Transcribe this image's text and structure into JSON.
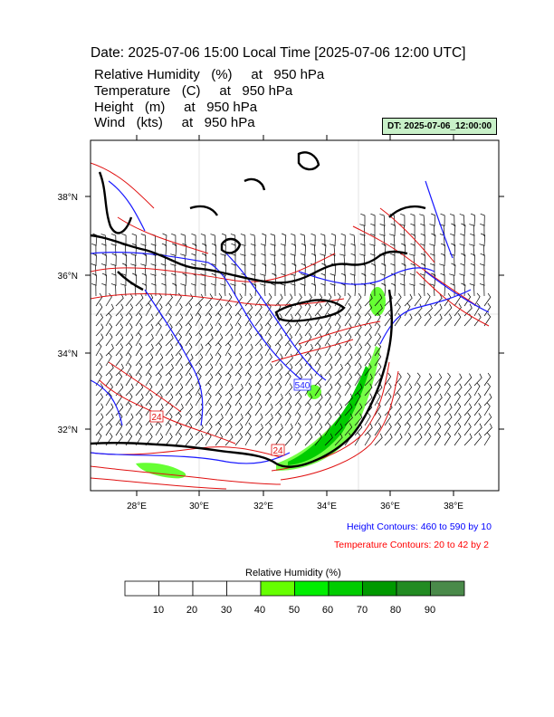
{
  "header": {
    "title": "Date: 2025-07-06  15:00 Local Time [2025-07-06  12:00 UTC]",
    "lines": [
      "Relative Humidity   (%)     at   950 hPa",
      "Temperature   (C)     at   950 hPa",
      "Height   (m)     at   950 hPa",
      "Wind   (kts)     at   950 hPa"
    ],
    "dt_badge": "DT: 2025-07-06_12:00:00"
  },
  "map": {
    "lon_ticks": [
      "28°E",
      "30°E",
      "32°E",
      "34°E",
      "36°E",
      "38°E"
    ],
    "lat_ticks": [
      "38°N",
      "36°N",
      "34°N",
      "32°N"
    ],
    "contour_labels": {
      "height": "540",
      "temperature_west": "24",
      "temperature_south": "24"
    },
    "colors": {
      "coast": "#000000",
      "height_contour": "#1a1aff",
      "temperature_contour": "#e01010",
      "rh_green_light": "#66ff33",
      "rh_green": "#00cc00"
    }
  },
  "legend": {
    "height": "Height Contours: 460 to 590 by 10",
    "temperature": "Temperature Contours: 20 to 42 by 2",
    "height_color": "#0000ff",
    "temperature_color": "#ff0000"
  },
  "colorbar": {
    "title": "Relative Humidity  (%)",
    "labels": [
      "10",
      "20",
      "30",
      "40",
      "50",
      "60",
      "70",
      "80",
      "90"
    ],
    "colors": [
      "#ffffff",
      "#ffffff",
      "#ffffff",
      "#ffffff",
      "#66ff00",
      "#00ee00",
      "#00cc00",
      "#009900",
      "#228b22",
      "#4a8a4a"
    ]
  }
}
